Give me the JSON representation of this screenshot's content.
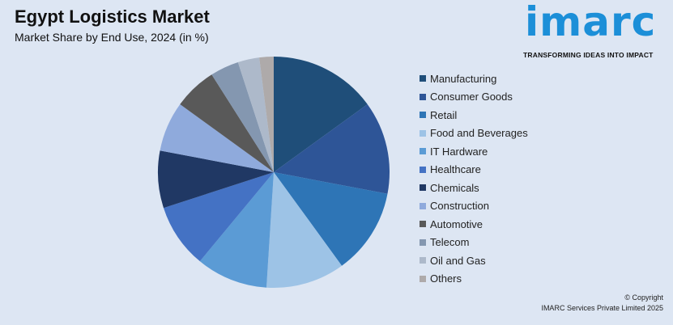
{
  "title": "Egypt Logistics Market",
  "subtitle": "Market Share by End Use, 2024 (in %)",
  "logo": {
    "text": "imarc",
    "tagline": "TRANSFORMING IDEAS INTO IMPACT",
    "color": "#1c8fd8"
  },
  "copyright": {
    "line1": "© Copyright",
    "line2": "IMARC Services Private Limited 2025"
  },
  "chart_data": {
    "type": "pie",
    "title": "Egypt Logistics Market",
    "subtitle": "Market Share by End Use, 2024 (in %)",
    "legend_position": "right",
    "start_angle_deg": 0,
    "direction": "clockwise",
    "categories": [
      "Manufacturing",
      "Consumer Goods",
      "Retail",
      "Food and Beverages",
      "IT Hardware",
      "Healthcare",
      "Chemicals",
      "Construction",
      "Automotive",
      "Telecom",
      "Oil and Gas",
      "Others"
    ],
    "values": [
      15,
      13,
      12,
      11,
      10,
      9,
      8,
      7,
      6,
      4,
      3,
      2
    ],
    "colors": [
      "#1f4e79",
      "#2e5597",
      "#2e75b6",
      "#9dc3e6",
      "#5b9bd5",
      "#4472c4",
      "#203864",
      "#8faadc",
      "#595959",
      "#8497b0",
      "#adb9ca",
      "#aeaaaa"
    ]
  }
}
